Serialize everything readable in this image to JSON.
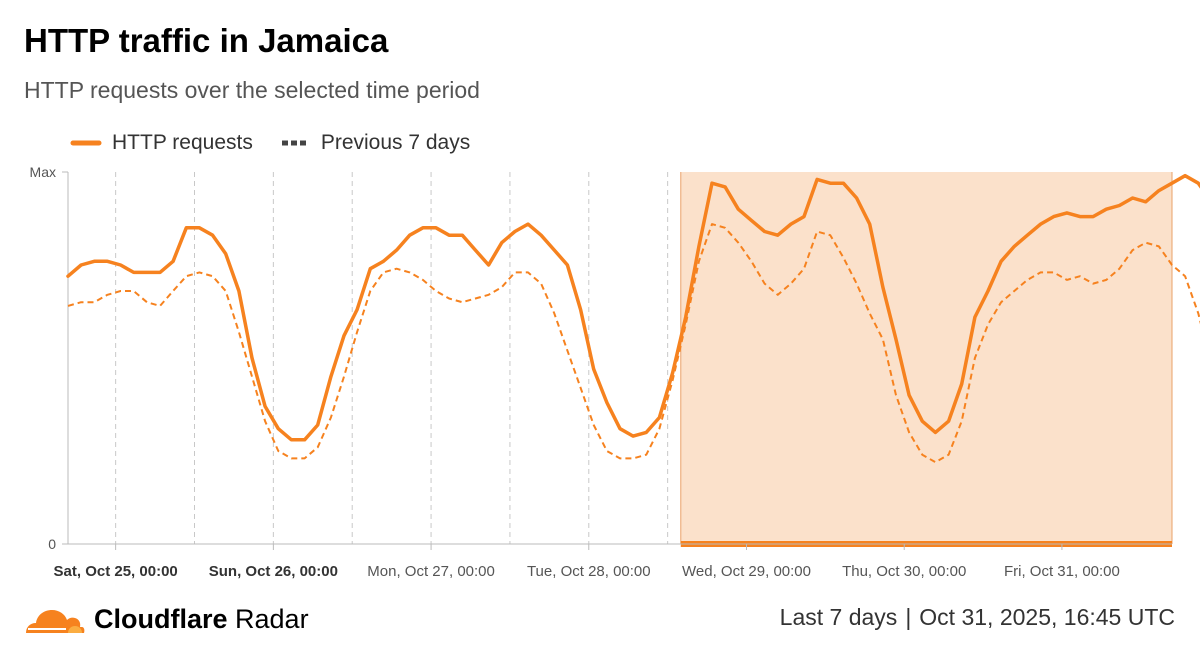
{
  "header": {
    "title": "HTTP traffic in Jamaica",
    "subtitle": "HTTP requests over the selected time period"
  },
  "footer": {
    "brand_bold": "Cloudflare",
    "brand_regular": "Radar",
    "period": "Last 7 days",
    "separator": "|",
    "timestamp": "Oct 31, 2025, 16:45 UTC"
  },
  "colors": {
    "series_main": "#f6821f",
    "series_previous": "#f6821f",
    "highlight_fill": "#fbe1cb"
  },
  "chart_data": {
    "type": "line",
    "ylabel_ticks": [
      "Max",
      "0"
    ],
    "ylim": [
      0,
      100
    ],
    "y_scale": "normalized (0 to Max)",
    "x_tick_labels": [
      {
        "label": "Sat, Oct 25, 00:00",
        "bold": true
      },
      {
        "label": "Sun, Oct 26, 00:00",
        "bold": true
      },
      {
        "label": "Mon, Oct 27, 00:00",
        "bold": false
      },
      {
        "label": "Tue, Oct 28, 00:00",
        "bold": false
      },
      {
        "label": "Wed, Oct 29, 00:00",
        "bold": false
      },
      {
        "label": "Thu, Oct 30, 00:00",
        "bold": false
      },
      {
        "label": "Fri, Oct 31, 00:00",
        "bold": false
      }
    ],
    "x_start": "Oct 24, 2025, 16:45 UTC",
    "x_end": "Oct 31, 2025, 16:45 UTC",
    "x_step_hours": 2,
    "highlight_start": "Oct 28, 2025, 14:00 UTC",
    "legend_position": "top-left",
    "grid": "vertical dashed",
    "series": [
      {
        "name": "HTTP requests",
        "style": "solid",
        "values": [
          72,
          75,
          76,
          76,
          75,
          73,
          73,
          73,
          76,
          85,
          85,
          83,
          78,
          68,
          50,
          37,
          31,
          28,
          28,
          32,
          45,
          56,
          63,
          74,
          76,
          79,
          83,
          85,
          85,
          83,
          83,
          79,
          75,
          81,
          84,
          86,
          83,
          79,
          75,
          63,
          47,
          38,
          31,
          29,
          30,
          34,
          46,
          61,
          80,
          97,
          96,
          90,
          87,
          84,
          83,
          86,
          88,
          98,
          97,
          97,
          93,
          86,
          69,
          55,
          40,
          33,
          30,
          33,
          43,
          61,
          68,
          76,
          80,
          83,
          86,
          88,
          89,
          88,
          88,
          90,
          91,
          93,
          92,
          95,
          97,
          99,
          97,
          92,
          89,
          81,
          62,
          44,
          42,
          36,
          31,
          29,
          34,
          37,
          39,
          43,
          45,
          47,
          50,
          58,
          52,
          45,
          42,
          40,
          38,
          35,
          32,
          30,
          27,
          25,
          22,
          20,
          17,
          16,
          16,
          17,
          18,
          19,
          20,
          22,
          23,
          24,
          25,
          27,
          28,
          29,
          30,
          31,
          33,
          29,
          31,
          30,
          28,
          29,
          31,
          34,
          35,
          32,
          30,
          28,
          26,
          24,
          23,
          22,
          24,
          23,
          27,
          28,
          29,
          30,
          31,
          30,
          30,
          28,
          27,
          27,
          27,
          29,
          31,
          32,
          33,
          34,
          33,
          29,
          26,
          25,
          23,
          23,
          22,
          21,
          20,
          20,
          19,
          18,
          17,
          16,
          16,
          28
        ]
      },
      {
        "name": "Previous 7 days",
        "style": "dashed",
        "values": [
          64,
          65,
          65,
          67,
          68,
          68,
          65,
          64,
          68,
          72,
          73,
          72,
          68,
          57,
          45,
          33,
          25,
          23,
          23,
          26,
          34,
          45,
          57,
          68,
          73,
          74,
          73,
          71,
          68,
          66,
          65,
          66,
          67,
          69,
          73,
          73,
          70,
          62,
          52,
          42,
          32,
          25,
          23,
          23,
          24,
          31,
          44,
          59,
          76,
          86,
          85,
          81,
          76,
          70,
          67,
          70,
          74,
          84,
          83,
          77,
          70,
          62,
          55,
          40,
          30,
          24,
          22,
          24,
          33,
          50,
          59,
          65,
          68,
          71,
          73,
          73,
          71,
          72,
          70,
          71,
          74,
          79,
          81,
          80,
          75,
          72,
          62,
          48,
          36,
          30,
          26,
          25,
          27,
          34,
          50,
          62,
          67,
          70,
          72,
          76,
          79,
          81,
          82,
          80,
          70,
          66,
          68,
          77,
          80,
          81,
          77,
          72,
          63,
          50,
          38,
          30,
          24,
          22,
          22,
          31,
          44,
          52,
          63,
          63,
          63,
          64,
          67,
          73,
          79,
          81,
          76,
          67,
          67,
          71,
          78,
          80,
          79,
          73,
          63,
          50,
          38,
          30,
          25,
          23,
          26,
          33,
          45,
          54,
          61,
          63,
          66,
          68,
          70,
          73,
          72,
          71,
          72,
          73,
          72,
          71,
          69,
          70,
          76,
          82,
          84,
          83,
          78,
          63,
          47,
          36,
          29,
          25,
          24,
          27,
          34,
          43,
          53,
          61,
          70,
          70
        ]
      }
    ]
  }
}
